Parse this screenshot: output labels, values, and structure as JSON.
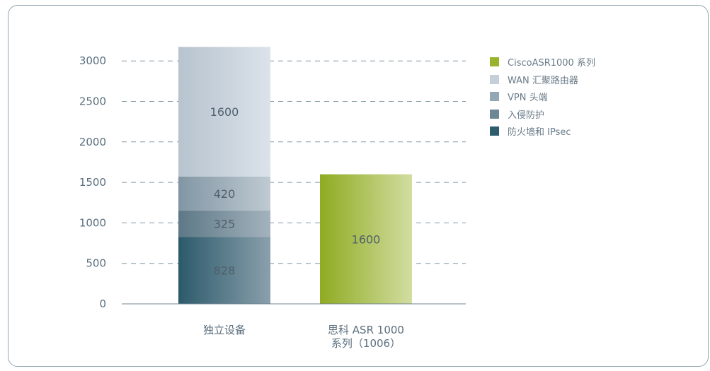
{
  "chart_data": {
    "type": "bar",
    "stacked": true,
    "categories": [
      [
        "独立设备"
      ],
      [
        "思科 ASR 1000",
        "系列（1006）"
      ]
    ],
    "ylim": [
      0,
      3250
    ],
    "yticks": [
      0,
      500,
      1000,
      1500,
      2000,
      2500,
      3000
    ],
    "grid": "dashed",
    "legend_position": "right",
    "series": [
      {
        "name": "防火墙和 IPsec",
        "color": "#2e5d6e",
        "values": [
          828,
          0
        ],
        "labels": [
          "828",
          ""
        ]
      },
      {
        "name": "入侵防护",
        "color": "#6d8794",
        "values": [
          325,
          0
        ],
        "labels": [
          "325",
          ""
        ]
      },
      {
        "name": "VPN 头端",
        "color": "#94a7b4",
        "values": [
          420,
          0
        ],
        "labels": [
          "420",
          ""
        ]
      },
      {
        "name": "WAN 汇聚路由器",
        "color": "#c5cfd9",
        "values": [
          1600,
          0
        ],
        "labels": [
          "1600",
          ""
        ]
      },
      {
        "name": "CiscoASR1000 系列",
        "color": "#9ab32c",
        "values": [
          0,
          1600
        ],
        "labels": [
          "",
          "1600"
        ]
      }
    ],
    "legend_order": [
      "CiscoASR1000 系列",
      "WAN 汇聚路由器",
      "VPN 头端",
      "入侵防护",
      "防火墙和 IPsec"
    ],
    "legend_colors": [
      "#9ab32c",
      "#c5cfd9",
      "#94a7b4",
      "#6d8794",
      "#2e5d6e"
    ]
  }
}
